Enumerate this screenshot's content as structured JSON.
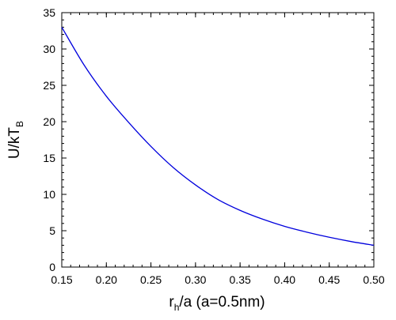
{
  "chart_data": {
    "type": "line",
    "title": "",
    "xlabel": {
      "main": "r",
      "sub": "h",
      "rest": "/a  (a=0.5nm)"
    },
    "ylabel": {
      "main": "U/kT",
      "sub": "B"
    },
    "xlim": [
      0.15,
      0.5
    ],
    "ylim": [
      0,
      35
    ],
    "x_ticks": [
      "0.15",
      "0.20",
      "0.25",
      "0.30",
      "0.35",
      "0.40",
      "0.45",
      "0.50"
    ],
    "y_ticks": [
      "0",
      "5",
      "10",
      "15",
      "20",
      "25",
      "30",
      "35"
    ],
    "x_minor_step": 0.01,
    "y_minor_step": 1,
    "grid": false,
    "legend": "none",
    "series": [
      {
        "color": "#0000dd",
        "x": [
          0.15,
          0.175,
          0.2,
          0.225,
          0.25,
          0.275,
          0.3,
          0.325,
          0.35,
          0.375,
          0.4,
          0.425,
          0.45,
          0.475,
          0.5
        ],
        "y": [
          33.0,
          27.8,
          23.5,
          19.9,
          16.6,
          13.7,
          11.3,
          9.3,
          7.8,
          6.6,
          5.6,
          4.8,
          4.1,
          3.5,
          3.0
        ]
      }
    ]
  }
}
